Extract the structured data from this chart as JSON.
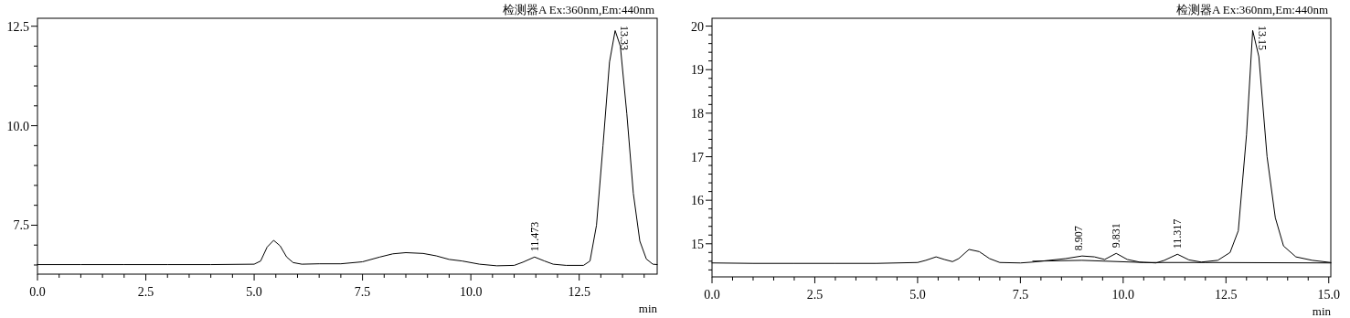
{
  "chart_data": [
    {
      "type": "line",
      "xlabel": "min",
      "xlim": [
        0,
        14.3
      ],
      "ylim": [
        6.27,
        12.7
      ],
      "xticks": [
        {
          "value": 0,
          "label": "0.0"
        },
        {
          "value": 0.5,
          "label": null
        },
        {
          "value": 1,
          "label": null
        },
        {
          "value": 1.5,
          "label": null
        },
        {
          "value": 2,
          "label": null
        },
        {
          "value": 2.5,
          "label": "2.5"
        },
        {
          "value": 3,
          "label": null
        },
        {
          "value": 3.5,
          "label": null
        },
        {
          "value": 4,
          "label": null
        },
        {
          "value": 4.5,
          "label": null
        },
        {
          "value": 5,
          "label": "5.0"
        },
        {
          "value": 5.5,
          "label": null
        },
        {
          "value": 6,
          "label": null
        },
        {
          "value": 6.5,
          "label": null
        },
        {
          "value": 7,
          "label": null
        },
        {
          "value": 7.5,
          "label": "7.5"
        },
        {
          "value": 8,
          "label": null
        },
        {
          "value": 8.5,
          "label": null
        },
        {
          "value": 9,
          "label": null
        },
        {
          "value": 9.5,
          "label": null
        },
        {
          "value": 10,
          "label": "10.0"
        },
        {
          "value": 10.5,
          "label": null
        },
        {
          "value": 11,
          "label": null
        },
        {
          "value": 11.5,
          "label": null
        },
        {
          "value": 12,
          "label": null
        },
        {
          "value": 12.5,
          "label": "12.5"
        },
        {
          "value": 13,
          "label": null
        },
        {
          "value": 13.5,
          "label": null
        },
        {
          "value": 14,
          "label": null
        }
      ],
      "yticks": [
        {
          "value": 6.5,
          "label": null
        },
        {
          "value": 7,
          "label": null
        },
        {
          "value": 7.5,
          "label": "7.5"
        },
        {
          "value": 8,
          "label": null
        },
        {
          "value": 8.5,
          "label": null
        },
        {
          "value": 9,
          "label": null
        },
        {
          "value": 9.5,
          "label": null
        },
        {
          "value": 10,
          "label": "10.0"
        },
        {
          "value": 10.5,
          "label": null
        },
        {
          "value": 11,
          "label": null
        },
        {
          "value": 11.5,
          "label": null
        },
        {
          "value": 12,
          "label": null
        },
        {
          "value": 12.5,
          "label": "12.5"
        }
      ],
      "series": [
        {
          "color": "#000000",
          "x": [
            0,
            1,
            2,
            3,
            4,
            5.0,
            5.15,
            5.3,
            5.45,
            5.6,
            5.75,
            5.9,
            6.1,
            6.5,
            7.0,
            7.5,
            7.9,
            8.2,
            8.5,
            8.9,
            9.2,
            9.5,
            9.8,
            10.2,
            10.6,
            11.0,
            11.2,
            11.47,
            11.7,
            11.9,
            12.2,
            12.6,
            12.75,
            12.9,
            13.05,
            13.2,
            13.33,
            13.45,
            13.6,
            13.75,
            13.9,
            14.05,
            14.2,
            14.3
          ],
          "values": [
            6.51,
            6.51,
            6.51,
            6.51,
            6.51,
            6.52,
            6.6,
            6.95,
            7.12,
            6.98,
            6.7,
            6.56,
            6.52,
            6.53,
            6.53,
            6.58,
            6.7,
            6.78,
            6.81,
            6.79,
            6.73,
            6.64,
            6.6,
            6.52,
            6.48,
            6.49,
            6.57,
            6.7,
            6.6,
            6.52,
            6.49,
            6.49,
            6.6,
            7.5,
            9.5,
            11.6,
            12.39,
            12.0,
            10.3,
            8.3,
            7.1,
            6.65,
            6.52,
            6.51
          ]
        }
      ],
      "annotations": [
        "检测器A Ex:360nm,Em:440nm",
        {
          "text": "11.473",
          "x": 11.473,
          "y": 6.7
        },
        {
          "text": "13.33",
          "x": 13.33,
          "y": 12.39
        }
      ]
    },
    {
      "type": "line",
      "xlabel": "min",
      "xlim": [
        0,
        15.05
      ],
      "ylim": [
        14.24,
        20.18
      ],
      "xticks": [
        {
          "value": 0,
          "label": "0.0"
        },
        {
          "value": 0.5,
          "label": null
        },
        {
          "value": 1,
          "label": null
        },
        {
          "value": 1.5,
          "label": null
        },
        {
          "value": 2,
          "label": null
        },
        {
          "value": 2.5,
          "label": "2.5"
        },
        {
          "value": 3,
          "label": null
        },
        {
          "value": 3.5,
          "label": null
        },
        {
          "value": 4,
          "label": null
        },
        {
          "value": 4.5,
          "label": null
        },
        {
          "value": 5,
          "label": "5.0"
        },
        {
          "value": 5.5,
          "label": null
        },
        {
          "value": 6,
          "label": null
        },
        {
          "value": 6.5,
          "label": null
        },
        {
          "value": 7,
          "label": null
        },
        {
          "value": 7.5,
          "label": "7.5"
        },
        {
          "value": 8,
          "label": null
        },
        {
          "value": 8.5,
          "label": null
        },
        {
          "value": 9,
          "label": null
        },
        {
          "value": 9.5,
          "label": null
        },
        {
          "value": 10,
          "label": "10.0"
        },
        {
          "value": 10.5,
          "label": null
        },
        {
          "value": 11,
          "label": null
        },
        {
          "value": 11.5,
          "label": null
        },
        {
          "value": 12,
          "label": null
        },
        {
          "value": 12.5,
          "label": "12.5"
        },
        {
          "value": 13,
          "label": null
        },
        {
          "value": 13.5,
          "label": null
        },
        {
          "value": 14,
          "label": null
        },
        {
          "value": 14.5,
          "label": null
        },
        {
          "value": 15,
          "label": "15.0"
        }
      ],
      "yticks": [
        {
          "value": 14.4,
          "label": null
        },
        {
          "value": 14.6,
          "label": null
        },
        {
          "value": 14.8,
          "label": null
        },
        15,
        {
          "value": 15.2,
          "label": null
        },
        {
          "value": 15.4,
          "label": null
        },
        {
          "value": 15.6,
          "label": null
        },
        {
          "value": 15.8,
          "label": null
        },
        16,
        {
          "value": 16.2,
          "label": null
        },
        {
          "value": 16.4,
          "label": null
        },
        {
          "value": 16.6,
          "label": null
        },
        {
          "value": 16.8,
          "label": null
        },
        17,
        {
          "value": 17.2,
          "label": null
        },
        {
          "value": 17.4,
          "label": null
        },
        {
          "value": 17.6,
          "label": null
        },
        {
          "value": 17.8,
          "label": null
        },
        18,
        {
          "value": 18.2,
          "label": null
        },
        {
          "value": 18.4,
          "label": null
        },
        {
          "value": 18.6,
          "label": null
        },
        {
          "value": 18.8,
          "label": null
        },
        19,
        {
          "value": 19.2,
          "label": null
        },
        {
          "value": 19.4,
          "label": null
        },
        {
          "value": 19.6,
          "label": null
        },
        {
          "value": 19.8,
          "label": null
        },
        20
      ],
      "series": [
        {
          "color": "#000000",
          "x": [
            0,
            1,
            2,
            3,
            4,
            5.0,
            5.2,
            5.45,
            5.65,
            5.85,
            6.0,
            6.25,
            6.5,
            6.75,
            7.0,
            7.5,
            7.8,
            8.2,
            8.6,
            9.0,
            9.3,
            9.55,
            9.83,
            10.1,
            10.4,
            10.8,
            11.0,
            11.32,
            11.6,
            11.9,
            12.3,
            12.6,
            12.8,
            13.0,
            13.15,
            13.3,
            13.5,
            13.7,
            13.9,
            14.2,
            14.6,
            15.05
          ],
          "values": [
            14.56,
            14.55,
            14.55,
            14.55,
            14.55,
            14.57,
            14.62,
            14.7,
            14.64,
            14.59,
            14.66,
            14.87,
            14.82,
            14.66,
            14.57,
            14.56,
            14.58,
            14.62,
            14.66,
            14.72,
            14.7,
            14.64,
            14.78,
            14.64,
            14.58,
            14.56,
            14.62,
            14.76,
            14.63,
            14.58,
            14.62,
            14.8,
            15.3,
            17.5,
            19.9,
            19.3,
            17.0,
            15.6,
            14.95,
            14.7,
            14.62,
            14.57
          ]
        },
        {
          "color": "#000000",
          "x": [
            7.8,
            9.0,
            10.5,
            12.0,
            15.05
          ],
          "values": [
            14.6,
            14.62,
            14.57,
            14.57,
            14.56
          ]
        }
      ],
      "annotations": [
        "检测器A Ex:360nm,Em:440nm",
        {
          "text": "8.907",
          "x": 8.907,
          "y": 14.72
        },
        {
          "text": "9.831",
          "x": 9.831,
          "y": 14.78
        },
        {
          "text": "11.317",
          "x": 11.317,
          "y": 14.76
        },
        {
          "text": "13.15",
          "x": 13.15,
          "y": 19.9
        }
      ]
    }
  ]
}
